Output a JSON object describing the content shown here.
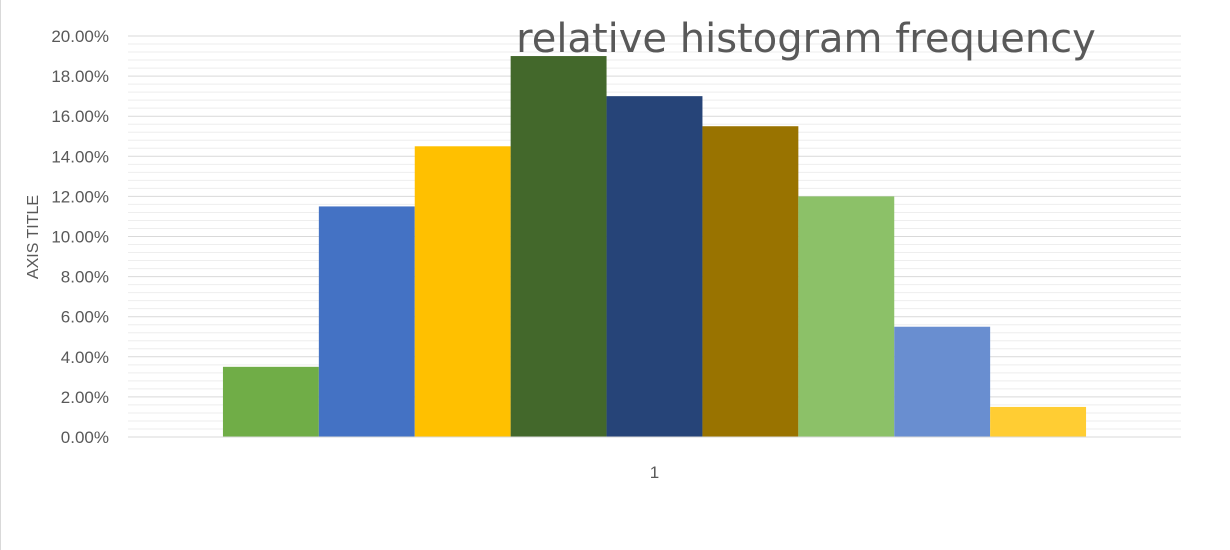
{
  "chart_data": {
    "type": "bar",
    "title": "relative histogram frequency",
    "xlabel": "",
    "ylabel": "AXIS TITLE",
    "categories": [
      "1"
    ],
    "series": [
      {
        "values": [
          0.035
        ],
        "color": "#70ad47"
      },
      {
        "values": [
          0.115
        ],
        "color": "#4472c4"
      },
      {
        "values": [
          0.145
        ],
        "color": "#ffc000"
      },
      {
        "values": [
          0.19
        ],
        "color": "#43682b"
      },
      {
        "values": [
          0.17
        ],
        "color": "#264478"
      },
      {
        "values": [
          0.155
        ],
        "color": "#997300"
      },
      {
        "values": [
          0.12
        ],
        "color": "#8cc168"
      },
      {
        "values": [
          0.055
        ],
        "color": "#698ed0"
      },
      {
        "values": [
          0.015
        ],
        "color": "#ffcd33"
      }
    ],
    "ylim": [
      0,
      0.2
    ],
    "yticks": [
      "0.00%",
      "2.00%",
      "4.00%",
      "6.00%",
      "8.00%",
      "10.00%",
      "12.00%",
      "14.00%",
      "16.00%",
      "18.00%",
      "20.00%"
    ],
    "major_grid": true,
    "minor_grid": true,
    "legend": "none"
  }
}
